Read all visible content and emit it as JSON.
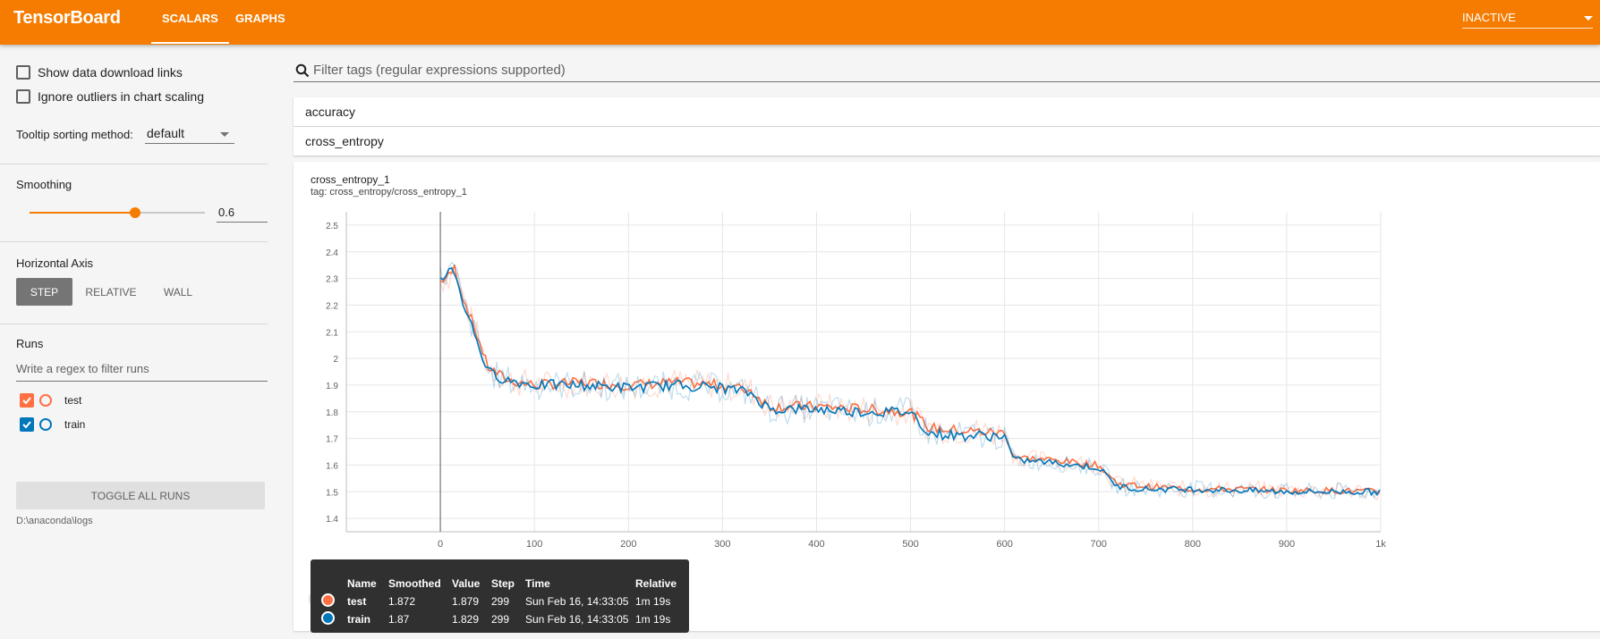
{
  "app": {
    "title": "TensorBoard"
  },
  "nav": {
    "tabs": [
      {
        "label": "SCALARS"
      },
      {
        "label": "GRAPHS"
      }
    ],
    "status": "INACTIVE"
  },
  "sidebar": {
    "show_download_links": "Show data download links",
    "ignore_outliers": "Ignore outliers in chart scaling",
    "tooltip_sorting_label": "Tooltip sorting method:",
    "tooltip_sorting_value": "default",
    "smoothing_title": "Smoothing",
    "smoothing_value": "0.6",
    "smoothing_fraction": 0.6,
    "horizontal_axis_title": "Horizontal Axis",
    "axis_options": [
      "STEP",
      "RELATIVE",
      "WALL"
    ],
    "axis_selected": "STEP",
    "runs_title": "Runs",
    "runs_filter_placeholder": "Write a regex to filter runs",
    "runs": [
      {
        "name": "test",
        "color": "#ff7043",
        "checked": true
      },
      {
        "name": "train",
        "color": "#0077bb",
        "checked": true
      }
    ],
    "toggle_all": "TOGGLE ALL RUNS",
    "logdir": "D:\\anaconda\\logs"
  },
  "main": {
    "tag_filter_placeholder": "Filter tags (regular expressions supported)",
    "categories": [
      "accuracy",
      "cross_entropy"
    ],
    "card": {
      "title": "cross_entropy_1",
      "tag": "tag: cross_entropy/cross_entropy_1"
    }
  },
  "tooltip": {
    "headers": [
      "Name",
      "Smoothed",
      "Value",
      "Step",
      "Time",
      "Relative"
    ],
    "rows": [
      {
        "name": "test",
        "smoothed": "1.872",
        "value": "1.879",
        "step": "299",
        "time": "Sun Feb 16, 14:33:05",
        "relative": "1m 19s",
        "color": "#ff7043"
      },
      {
        "name": "train",
        "smoothed": "1.87",
        "value": "1.829",
        "step": "299",
        "time": "Sun Feb 16, 14:33:05",
        "relative": "1m 19s",
        "color": "#0077bb"
      }
    ]
  },
  "chart_data": {
    "type": "line",
    "title": "cross_entropy_1",
    "xlabel": "",
    "ylabel": "",
    "xlim": [
      -100,
      1000
    ],
    "ylim": [
      1.35,
      2.55
    ],
    "x_ticks": [
      "0",
      "100",
      "200",
      "300",
      "400",
      "500",
      "600",
      "700",
      "800",
      "900",
      "1k"
    ],
    "y_ticks": [
      "1.4",
      "1.5",
      "1.6",
      "1.7",
      "1.8",
      "1.9",
      "2",
      "2.1",
      "2.2",
      "2.3",
      "2.4",
      "2.5"
    ],
    "grid": true,
    "hover_step": 0,
    "series": [
      {
        "name": "test",
        "color": "#ff7043",
        "x": [
          0,
          10,
          15,
          25,
          40,
          50,
          70,
          100,
          150,
          200,
          250,
          300,
          330,
          350,
          400,
          450,
          500,
          520,
          550,
          600,
          610,
          650,
          700,
          720,
          750,
          800,
          850,
          900,
          950,
          999
        ],
        "y": [
          2.29,
          2.31,
          2.34,
          2.22,
          2.08,
          1.97,
          1.92,
          1.9,
          1.91,
          1.9,
          1.91,
          1.9,
          1.88,
          1.82,
          1.82,
          1.81,
          1.8,
          1.74,
          1.73,
          1.72,
          1.63,
          1.62,
          1.6,
          1.53,
          1.52,
          1.51,
          1.51,
          1.505,
          1.505,
          1.5
        ]
      },
      {
        "name": "train",
        "color": "#0077bb",
        "x": [
          0,
          10,
          15,
          25,
          40,
          50,
          70,
          100,
          150,
          200,
          250,
          300,
          330,
          350,
          400,
          450,
          500,
          520,
          550,
          600,
          610,
          650,
          700,
          720,
          750,
          800,
          850,
          900,
          950,
          999
        ],
        "y": [
          2.3,
          2.33,
          2.33,
          2.2,
          2.06,
          1.95,
          1.92,
          1.9,
          1.9,
          1.89,
          1.9,
          1.89,
          1.87,
          1.81,
          1.81,
          1.8,
          1.8,
          1.72,
          1.71,
          1.71,
          1.62,
          1.61,
          1.59,
          1.52,
          1.51,
          1.51,
          1.505,
          1.5,
          1.5,
          1.5
        ]
      }
    ]
  }
}
